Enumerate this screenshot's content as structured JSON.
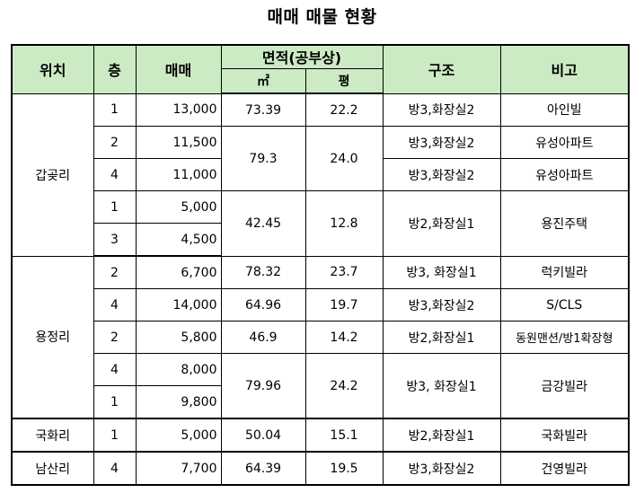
{
  "title": "매매 매물 현황",
  "header": {
    "location": "위치",
    "floor": "층",
    "price": "매매",
    "area": "면적(공부상)",
    "sqm": "㎡",
    "pyeong": "평",
    "structure": "구조",
    "note": "비고"
  },
  "groups": [
    {
      "location": "갑곶리",
      "rows": [
        {
          "floor": "1",
          "price": "13,000",
          "sqm": "73.39",
          "pyeong": "22.2",
          "structure": "방3,화장실2",
          "note": "아인빌"
        },
        {
          "floor": "2",
          "price": "11,500",
          "sqm": "79.3",
          "pyeong": "24.0",
          "structure": "방3,화장실2",
          "note": "유성아파트"
        },
        {
          "floor": "4",
          "price": "11,000",
          "structure": "방3,화장실2",
          "note": "유성아파트"
        },
        {
          "floor": "1",
          "price": "5,000",
          "sqm": "42.45",
          "pyeong": "12.8",
          "structure": "방2,화장실1",
          "note": "용진주택"
        },
        {
          "floor": "3",
          "price": "4,500"
        }
      ]
    },
    {
      "location": "용정리",
      "rows": [
        {
          "floor": "2",
          "price": "6,700",
          "sqm": "78.32",
          "pyeong": "23.7",
          "structure": "방3, 화장실1",
          "note": "럭키빌라"
        },
        {
          "floor": "4",
          "price": "14,000",
          "sqm": "64.96",
          "pyeong": "19.7",
          "structure": "방3,화장실2",
          "note": "S/CLS"
        },
        {
          "floor": "2",
          "price": "5,800",
          "sqm": "46.9",
          "pyeong": "14.2",
          "structure": "방2,화장실1",
          "note": "동원맨션/방1확장형"
        },
        {
          "floor": "4",
          "price": "8,000",
          "sqm": "79.96",
          "pyeong": "24.2",
          "structure": "방3, 화장실1",
          "note": "금강빌라"
        },
        {
          "floor": "1",
          "price": "9,800"
        }
      ]
    },
    {
      "location": "국화리",
      "rows": [
        {
          "floor": "1",
          "price": "5,000",
          "sqm": "50.04",
          "pyeong": "15.1",
          "structure": "방2,화장실1",
          "note": "국화빌라"
        }
      ]
    },
    {
      "location": "남산리",
      "rows": [
        {
          "floor": "4",
          "price": "7,700",
          "sqm": "64.39",
          "pyeong": "19.5",
          "structure": "방3,화장실2",
          "note": "건영빌라"
        }
      ]
    }
  ],
  "colors": {
    "header_bg": "#ccebc5"
  }
}
